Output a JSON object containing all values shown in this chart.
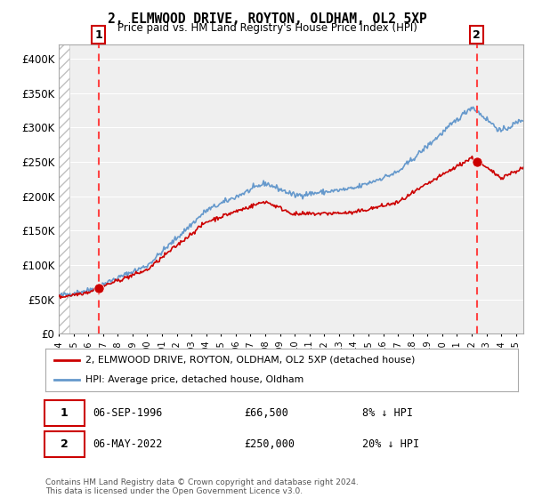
{
  "title": "2, ELMWOOD DRIVE, ROYTON, OLDHAM, OL2 5XP",
  "subtitle": "Price paid vs. HM Land Registry's House Price Index (HPI)",
  "ylabel_ticks": [
    "£0",
    "£50K",
    "£100K",
    "£150K",
    "£200K",
    "£250K",
    "£300K",
    "£350K",
    "£400K"
  ],
  "ytick_values": [
    0,
    50000,
    100000,
    150000,
    200000,
    250000,
    300000,
    350000,
    400000
  ],
  "ylim": [
    0,
    420000
  ],
  "xlim_start": 1994.0,
  "xlim_end": 2025.5,
  "sale1_year": 1996.69,
  "sale1_price": 66500,
  "sale1_label": "1",
  "sale2_year": 2022.35,
  "sale2_price": 250000,
  "sale2_label": "2",
  "property_line_color": "#cc0000",
  "hpi_line_color": "#6699cc",
  "dashed_line_color": "#ff4444",
  "legend_property": "2, ELMWOOD DRIVE, ROYTON, OLDHAM, OL2 5XP (detached house)",
  "legend_hpi": "HPI: Average price, detached house, Oldham",
  "note1_box": "1",
  "note1_date": "06-SEP-1996",
  "note1_price": "£66,500",
  "note1_hpi": "8% ↓ HPI",
  "note2_box": "2",
  "note2_date": "06-MAY-2022",
  "note2_price": "£250,000",
  "note2_hpi": "20% ↓ HPI",
  "footer": "Contains HM Land Registry data © Crown copyright and database right 2024.\nThis data is licensed under the Open Government Licence v3.0.",
  "background_color": "#ffffff",
  "plot_bg_color": "#efefef"
}
